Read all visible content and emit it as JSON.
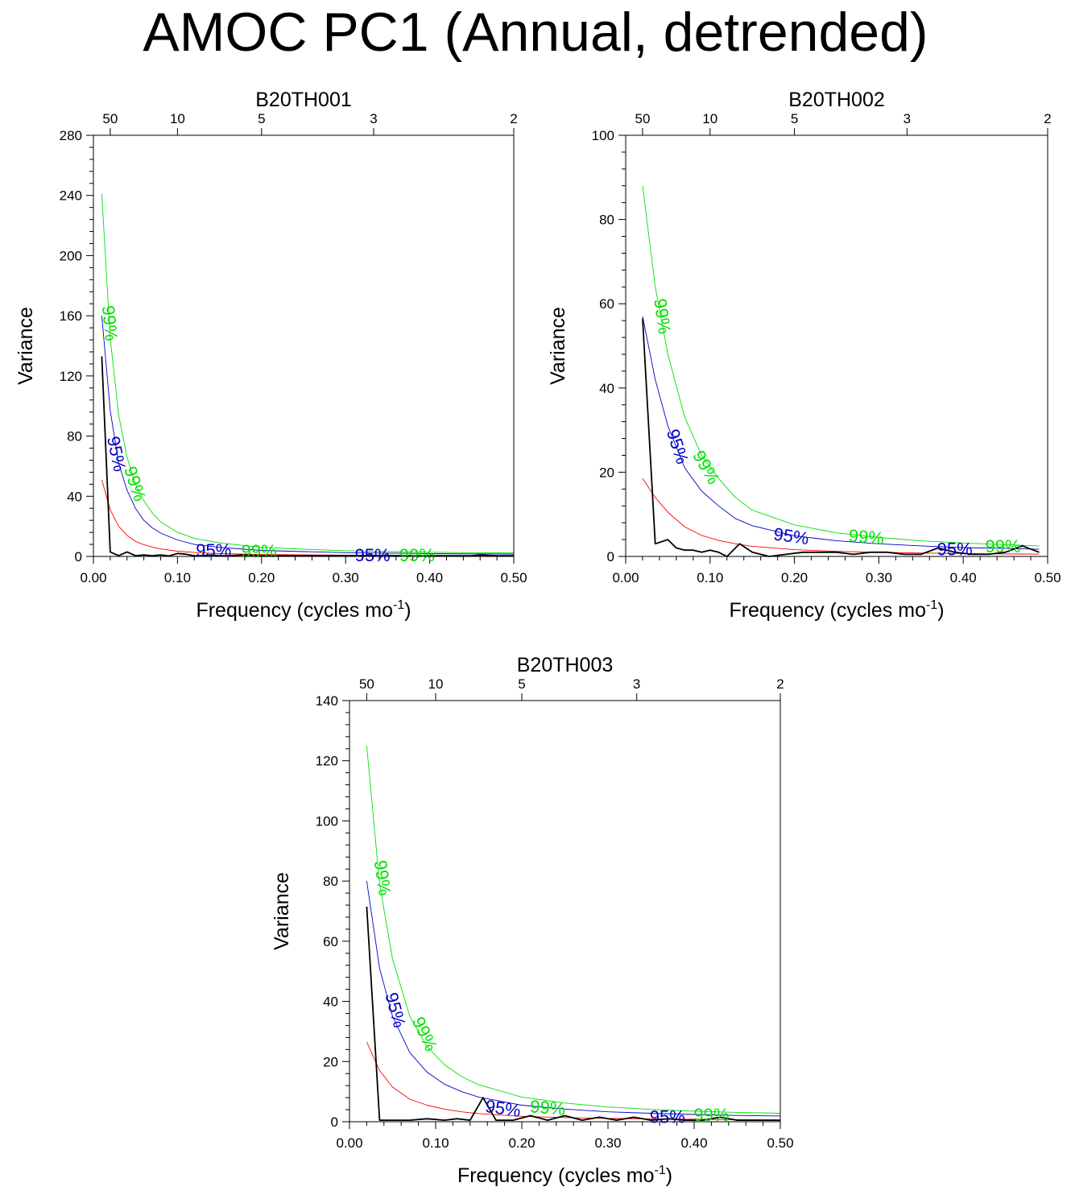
{
  "figure": {
    "title": "AMOC PC1 (Annual, detrended)"
  },
  "chart_data": [
    {
      "type": "line",
      "title": "B20TH001",
      "xlabel": "Frequency (cycles mo",
      "xlabel_sup": "-1",
      "xlabel_end": ")",
      "ylabel": "Variance",
      "xlim": [
        0,
        0.5
      ],
      "ylim": [
        0,
        280
      ],
      "xticks": [
        0,
        0.1,
        0.2,
        0.3,
        0.4,
        0.5
      ],
      "xtick_labels": [
        "0.00",
        "0.10",
        "0.20",
        "0.30",
        "0.40",
        "0.50"
      ],
      "yticks": [
        0,
        40,
        80,
        120,
        160,
        200,
        240,
        280
      ],
      "ytick_labels": [
        "0",
        "40",
        "80",
        "120",
        "160",
        "200",
        "240",
        "280"
      ],
      "period_axis": {
        "periods": [
          50,
          10,
          5,
          3,
          2
        ],
        "labels": [
          "50",
          "10",
          "5",
          "3",
          "2"
        ]
      },
      "colors": {
        "spectrum": "#000000",
        "red_noise": "#ff0000",
        "ci95": "#0000c8",
        "ci99": "#00e000"
      },
      "series": [
        {
          "name": "spectrum",
          "x": [
            0.01,
            0.02,
            0.03,
            0.04,
            0.05,
            0.06,
            0.07,
            0.08,
            0.09,
            0.1,
            0.11,
            0.12,
            0.13,
            0.14,
            0.15,
            0.16,
            0.18,
            0.2,
            0.25,
            0.3,
            0.35,
            0.4,
            0.45,
            0.46,
            0.48,
            0.5
          ],
          "y": [
            133,
            3,
            0.5,
            3,
            0.5,
            1,
            0.5,
            1,
            0.3,
            2,
            1.5,
            0.5,
            0.5,
            1,
            0.5,
            0.5,
            1,
            0.5,
            0.5,
            0.5,
            0.5,
            0.5,
            0.5,
            1,
            0.5,
            0.5
          ]
        },
        {
          "name": "red noise",
          "x": [
            0.01,
            0.02,
            0.03,
            0.04,
            0.05,
            0.06,
            0.07,
            0.08,
            0.1,
            0.12,
            0.15,
            0.2,
            0.25,
            0.3,
            0.35,
            0.4,
            0.45,
            0.5
          ],
          "y": [
            51,
            31,
            20,
            14,
            10,
            7.8,
            6.2,
            5,
            3.5,
            2.6,
            1.9,
            1.3,
            1,
            0.8,
            0.7,
            0.6,
            0.55,
            0.5
          ]
        },
        {
          "name": "95%",
          "x": [
            0.01,
            0.02,
            0.03,
            0.04,
            0.05,
            0.06,
            0.07,
            0.08,
            0.1,
            0.12,
            0.15,
            0.2,
            0.25,
            0.3,
            0.35,
            0.4,
            0.45,
            0.5
          ],
          "y": [
            160,
            97,
            62,
            44,
            32,
            24,
            19,
            15.5,
            11,
            8,
            6,
            4,
            3.2,
            2.5,
            2.2,
            1.9,
            1.7,
            1.6
          ]
        },
        {
          "name": "99%",
          "x": [
            0.01,
            0.02,
            0.03,
            0.04,
            0.05,
            0.06,
            0.07,
            0.08,
            0.1,
            0.12,
            0.15,
            0.2,
            0.25,
            0.3,
            0.35,
            0.4,
            0.45,
            0.5
          ],
          "y": [
            241,
            145,
            94,
            66,
            48,
            37,
            29,
            23,
            16,
            12,
            9,
            6,
            4.8,
            3.8,
            3.2,
            2.8,
            2.5,
            2.3
          ]
        }
      ],
      "annotations": [
        {
          "text": "99%",
          "series": "99%",
          "x": 0.018,
          "y": 155,
          "angle": 84
        },
        {
          "text": "95%",
          "series": "95%",
          "x": 0.026,
          "y": 68,
          "angle": 78
        },
        {
          "text": "99%",
          "series": "99%",
          "x": 0.048,
          "y": 48,
          "angle": 72
        },
        {
          "text": "95%",
          "series": "95%",
          "x": 0.143,
          "y": 3,
          "angle": 0
        },
        {
          "text": "99%",
          "series": "99%",
          "x": 0.197,
          "y": 2.5,
          "angle": 0
        },
        {
          "text": "95%",
          "series": "95%",
          "x": 0.332,
          "y": 0,
          "angle": 0
        },
        {
          "text": "99%",
          "series": "99%",
          "x": 0.385,
          "y": 0,
          "angle": 0
        }
      ]
    },
    {
      "type": "line",
      "title": "B20TH002",
      "xlabel": "Frequency (cycles mo",
      "xlabel_sup": "-1",
      "xlabel_end": ")",
      "ylabel": "Variance",
      "xlim": [
        0,
        0.5
      ],
      "ylim": [
        0,
        100
      ],
      "xticks": [
        0,
        0.1,
        0.2,
        0.3,
        0.4,
        0.5
      ],
      "xtick_labels": [
        "0.00",
        "0.10",
        "0.20",
        "0.30",
        "0.40",
        "0.50"
      ],
      "yticks": [
        0,
        20,
        40,
        60,
        80,
        100
      ],
      "ytick_labels": [
        "0",
        "20",
        "40",
        "60",
        "80",
        "100"
      ],
      "period_axis": {
        "periods": [
          50,
          10,
          5,
          3,
          2
        ],
        "labels": [
          "50",
          "10",
          "5",
          "3",
          "2"
        ]
      },
      "colors": {
        "spectrum": "#000000",
        "red_noise": "#ff0000",
        "ci95": "#0000c8",
        "ci99": "#00e000"
      },
      "series": [
        {
          "name": "spectrum",
          "x": [
            0.02,
            0.035,
            0.05,
            0.06,
            0.07,
            0.08,
            0.09,
            0.1,
            0.11,
            0.12,
            0.135,
            0.15,
            0.17,
            0.19,
            0.21,
            0.23,
            0.25,
            0.27,
            0.29,
            0.31,
            0.33,
            0.35,
            0.37,
            0.39,
            0.41,
            0.43,
            0.45,
            0.47,
            0.49
          ],
          "y": [
            56.5,
            3,
            4,
            2,
            1.5,
            1.5,
            1,
            1.5,
            1,
            0,
            3,
            1,
            0,
            0.5,
            1,
            1,
            1,
            0.5,
            1,
            1,
            0.5,
            0.5,
            2,
            1,
            0.5,
            0.5,
            1,
            2.5,
            1
          ]
        },
        {
          "name": "red noise",
          "x": [
            0.02,
            0.035,
            0.05,
            0.07,
            0.09,
            0.11,
            0.13,
            0.15,
            0.2,
            0.25,
            0.3,
            0.35,
            0.4,
            0.45,
            0.49
          ],
          "y": [
            18.5,
            14,
            10.5,
            7,
            5,
            3.8,
            3,
            2.4,
            1.6,
            1.2,
            1,
            0.8,
            0.7,
            0.6,
            0.55
          ]
        },
        {
          "name": "95%",
          "x": [
            0.02,
            0.035,
            0.05,
            0.07,
            0.09,
            0.11,
            0.13,
            0.15,
            0.2,
            0.25,
            0.3,
            0.35,
            0.4,
            0.45,
            0.49
          ],
          "y": [
            57,
            42,
            31,
            21,
            15.5,
            12,
            9,
            7.3,
            4.9,
            3.7,
            3,
            2.5,
            2.1,
            1.9,
            1.7
          ]
        },
        {
          "name": "99%",
          "x": [
            0.02,
            0.035,
            0.05,
            0.07,
            0.09,
            0.11,
            0.13,
            0.15,
            0.2,
            0.25,
            0.3,
            0.35,
            0.4,
            0.45,
            0.49
          ],
          "y": [
            88,
            64,
            48,
            33,
            24,
            18.5,
            14,
            11,
            7.5,
            5.6,
            4.5,
            3.7,
            3.2,
            2.8,
            2.5
          ]
        }
      ],
      "annotations": [
        {
          "text": "99%",
          "series": "99%",
          "x": 0.042,
          "y": 57,
          "angle": 82
        },
        {
          "text": "95%",
          "series": "95%",
          "x": 0.06,
          "y": 26,
          "angle": 72
        },
        {
          "text": "99%",
          "series": "99%",
          "x": 0.094,
          "y": 21,
          "angle": 60
        },
        {
          "text": "95%",
          "series": "95%",
          "x": 0.196,
          "y": 4.5,
          "angle": 8
        },
        {
          "text": "99%",
          "series": "99%",
          "x": 0.285,
          "y": 4.3,
          "angle": 5
        },
        {
          "text": "95%",
          "series": "95%",
          "x": 0.39,
          "y": 1.4,
          "angle": 0
        },
        {
          "text": "99%",
          "series": "99%",
          "x": 0.447,
          "y": 2.1,
          "angle": 0
        }
      ]
    },
    {
      "type": "line",
      "title": "B20TH003",
      "xlabel": "Frequency (cycles mo",
      "xlabel_sup": "-1",
      "xlabel_end": ")",
      "ylabel": "Variance",
      "xlim": [
        0,
        0.5
      ],
      "ylim": [
        0,
        140
      ],
      "xticks": [
        0,
        0.1,
        0.2,
        0.3,
        0.4,
        0.5
      ],
      "xtick_labels": [
        "0.00",
        "0.10",
        "0.20",
        "0.30",
        "0.40",
        "0.50"
      ],
      "yticks": [
        0,
        20,
        40,
        60,
        80,
        100,
        120,
        140
      ],
      "ytick_labels": [
        "0",
        "20",
        "40",
        "60",
        "80",
        "100",
        "120",
        "140"
      ],
      "period_axis": {
        "periods": [
          50,
          10,
          5,
          3,
          2
        ],
        "labels": [
          "50",
          "10",
          "5",
          "3",
          "2"
        ]
      },
      "colors": {
        "spectrum": "#000000",
        "red_noise": "#ff0000",
        "ci95": "#0000c8",
        "ci99": "#00e000"
      },
      "series": [
        {
          "name": "spectrum",
          "x": [
            0.02,
            0.035,
            0.05,
            0.07,
            0.09,
            0.11,
            0.125,
            0.14,
            0.155,
            0.17,
            0.19,
            0.21,
            0.23,
            0.25,
            0.27,
            0.29,
            0.31,
            0.33,
            0.35,
            0.37,
            0.39,
            0.41,
            0.43,
            0.45,
            0.47,
            0.5
          ],
          "y": [
            71.5,
            0.5,
            0.5,
            0.5,
            1,
            0.5,
            1,
            0.5,
            8,
            0.5,
            0.5,
            2,
            0.5,
            2,
            0.5,
            1.5,
            0.5,
            1.5,
            0.5,
            1,
            0.5,
            0.5,
            1.5,
            0.5,
            0.5,
            0.5
          ]
        },
        {
          "name": "red noise",
          "x": [
            0.02,
            0.035,
            0.05,
            0.07,
            0.09,
            0.11,
            0.13,
            0.15,
            0.2,
            0.25,
            0.3,
            0.35,
            0.4,
            0.45,
            0.5
          ],
          "y": [
            26.5,
            17,
            11.5,
            7.5,
            5.5,
            4.2,
            3.3,
            2.7,
            1.8,
            1.4,
            1.1,
            0.9,
            0.8,
            0.7,
            0.6
          ]
        },
        {
          "name": "95%",
          "x": [
            0.02,
            0.035,
            0.05,
            0.07,
            0.09,
            0.11,
            0.13,
            0.15,
            0.2,
            0.25,
            0.3,
            0.35,
            0.4,
            0.45,
            0.5
          ],
          "y": [
            80,
            51,
            35,
            23,
            16.5,
            12.5,
            10,
            8.2,
            5.5,
            4.2,
            3.3,
            2.8,
            2.4,
            2.1,
            1.9
          ]
        },
        {
          "name": "99%",
          "x": [
            0.02,
            0.035,
            0.05,
            0.07,
            0.09,
            0.11,
            0.13,
            0.15,
            0.2,
            0.25,
            0.3,
            0.35,
            0.4,
            0.45,
            0.5
          ],
          "y": [
            125,
            79,
            54,
            35,
            25,
            19,
            15,
            12.3,
            8.2,
            6.2,
            4.9,
            4.1,
            3.5,
            3.1,
            2.8
          ]
        }
      ],
      "annotations": [
        {
          "text": "99%",
          "series": "99%",
          "x": 0.037,
          "y": 81,
          "angle": 82
        },
        {
          "text": "95%",
          "series": "95%",
          "x": 0.052,
          "y": 37,
          "angle": 75
        },
        {
          "text": "99%",
          "series": "99%",
          "x": 0.086,
          "y": 29,
          "angle": 65
        },
        {
          "text": "95%",
          "series": "95%",
          "x": 0.178,
          "y": 4,
          "angle": 8
        },
        {
          "text": "99%",
          "series": "99%",
          "x": 0.23,
          "y": 4.2,
          "angle": 5
        },
        {
          "text": "95%",
          "series": "95%",
          "x": 0.369,
          "y": 1.2,
          "angle": 0
        },
        {
          "text": "99%",
          "series": "99%",
          "x": 0.42,
          "y": 1.8,
          "angle": 0
        }
      ]
    }
  ]
}
